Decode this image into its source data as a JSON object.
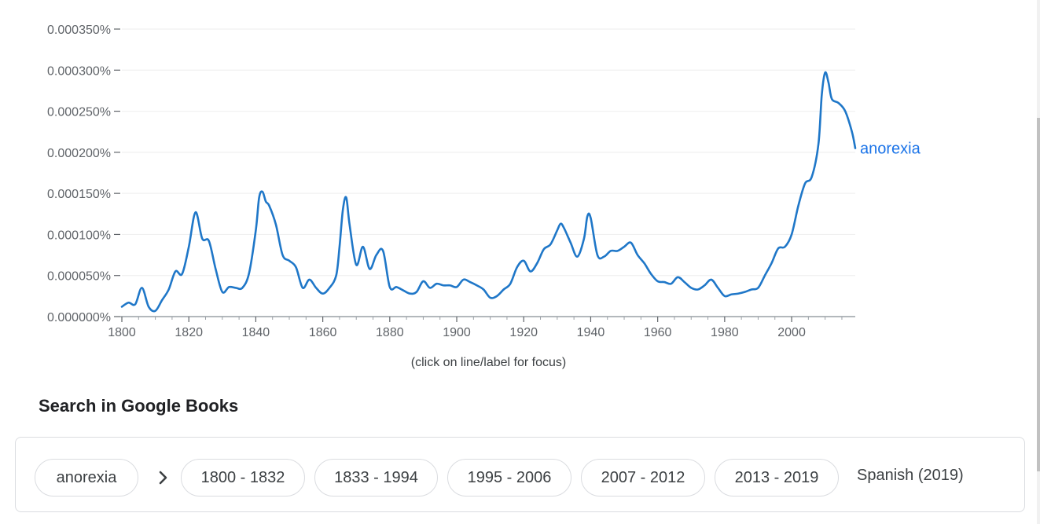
{
  "chart_data": {
    "type": "line",
    "title": "",
    "xlabel": "",
    "ylabel": "",
    "xlim": [
      1800,
      2019
    ],
    "ylim": [
      0,
      0.00035
    ],
    "grid": true,
    "x_ticks": [
      "1800",
      "1820",
      "1840",
      "1860",
      "1880",
      "1900",
      "1920",
      "1940",
      "1960",
      "1980",
      "2000"
    ],
    "x_tick_values": [
      1800,
      1820,
      1840,
      1860,
      1880,
      1900,
      1920,
      1940,
      1960,
      1980,
      2000
    ],
    "y_ticks": [
      "0.000000%",
      "0.000050%",
      "0.000100%",
      "0.000150%",
      "0.000200%",
      "0.000250%",
      "0.000300%",
      "0.000350%"
    ],
    "y_tick_values": [
      0,
      5e-05,
      0.0001,
      0.00015,
      0.0002,
      0.00025,
      0.0003,
      0.00035
    ],
    "series": [
      {
        "name": "anorexia",
        "color": "#1f77c8",
        "x": [
          1800,
          1802,
          1804,
          1806,
          1808,
          1810,
          1812,
          1814,
          1816,
          1818,
          1820,
          1822,
          1824,
          1826,
          1828,
          1830,
          1832,
          1834,
          1836,
          1838,
          1840,
          1841,
          1842,
          1843,
          1844,
          1846,
          1848,
          1850,
          1852,
          1854,
          1856,
          1858,
          1860,
          1862,
          1864,
          1865,
          1866,
          1867,
          1868,
          1870,
          1872,
          1874,
          1876,
          1878,
          1880,
          1882,
          1884,
          1886,
          1888,
          1890,
          1892,
          1894,
          1896,
          1898,
          1900,
          1902,
          1904,
          1906,
          1908,
          1910,
          1912,
          1914,
          1916,
          1918,
          1920,
          1922,
          1924,
          1926,
          1928,
          1930,
          1931,
          1932,
          1934,
          1936,
          1938,
          1939,
          1940,
          1942,
          1944,
          1946,
          1948,
          1950,
          1952,
          1954,
          1956,
          1958,
          1960,
          1962,
          1964,
          1966,
          1968,
          1970,
          1972,
          1974,
          1976,
          1978,
          1980,
          1982,
          1984,
          1986,
          1988,
          1990,
          1992,
          1994,
          1996,
          1998,
          2000,
          2002,
          2004,
          2006,
          2008,
          2009,
          2010,
          2011,
          2012,
          2014,
          2016,
          2018,
          2019
        ],
        "y": [
          1.2e-05,
          1.7e-05,
          1.5e-05,
          3.5e-05,
          1.2e-05,
          7e-06,
          2e-05,
          3.3e-05,
          5.5e-05,
          5.2e-05,
          8.5e-05,
          0.000127,
          9.5e-05,
          9.2e-05,
          5.8e-05,
          3e-05,
          3.6e-05,
          3.5e-05,
          3.5e-05,
          5.3e-05,
          0.000105,
          0.000145,
          0.000152,
          0.00014,
          0.000135,
          0.000112,
          7.5e-05,
          6.8e-05,
          6e-05,
          3.5e-05,
          4.5e-05,
          3.5e-05,
          2.8e-05,
          3.5e-05,
          5e-05,
          8.5e-05,
          0.00013,
          0.000145,
          0.000112,
          6.3e-05,
          8.5e-05,
          5.8e-05,
          7.5e-05,
          8e-05,
          3.6e-05,
          3.6e-05,
          3.2e-05,
          2.8e-05,
          3e-05,
          4.3e-05,
          3.5e-05,
          4e-05,
          3.8e-05,
          3.8e-05,
          3.6e-05,
          4.5e-05,
          4.2e-05,
          3.8e-05,
          3.3e-05,
          2.3e-05,
          2.5e-05,
          3.3e-05,
          4e-05,
          6e-05,
          6.8e-05,
          5.5e-05,
          6.5e-05,
          8.2e-05,
          8.8e-05,
          0.000105,
          0.000113,
          0.000108,
          9e-05,
          7.3e-05,
          9.5e-05,
          0.000122,
          0.00012,
          7.5e-05,
          7.3e-05,
          8e-05,
          8e-05,
          8.5e-05,
          9e-05,
          7.5e-05,
          6.5e-05,
          5.2e-05,
          4.3e-05,
          4.2e-05,
          4e-05,
          4.8e-05,
          4.2e-05,
          3.5e-05,
          3.3e-05,
          3.8e-05,
          4.5e-05,
          3.5e-05,
          2.5e-05,
          2.7e-05,
          2.8e-05,
          3e-05,
          3.3e-05,
          3.5e-05,
          5e-05,
          6.5e-05,
          8.3e-05,
          8.5e-05,
          0.0001,
          0.000135,
          0.000162,
          0.00017,
          0.00021,
          0.00027,
          0.000297,
          0.000285,
          0.000265,
          0.00026,
          0.00025,
          0.000225,
          0.000205
        ]
      }
    ]
  },
  "hint_text": "(click on line/label for focus)",
  "search_section": {
    "title": "Search in Google Books",
    "term": "anorexia",
    "ranges": [
      "1800 - 1832",
      "1833 - 1994",
      "1995 - 2006",
      "2007 - 2012",
      "2013 - 2019"
    ],
    "corpus": "Spanish (2019)"
  }
}
